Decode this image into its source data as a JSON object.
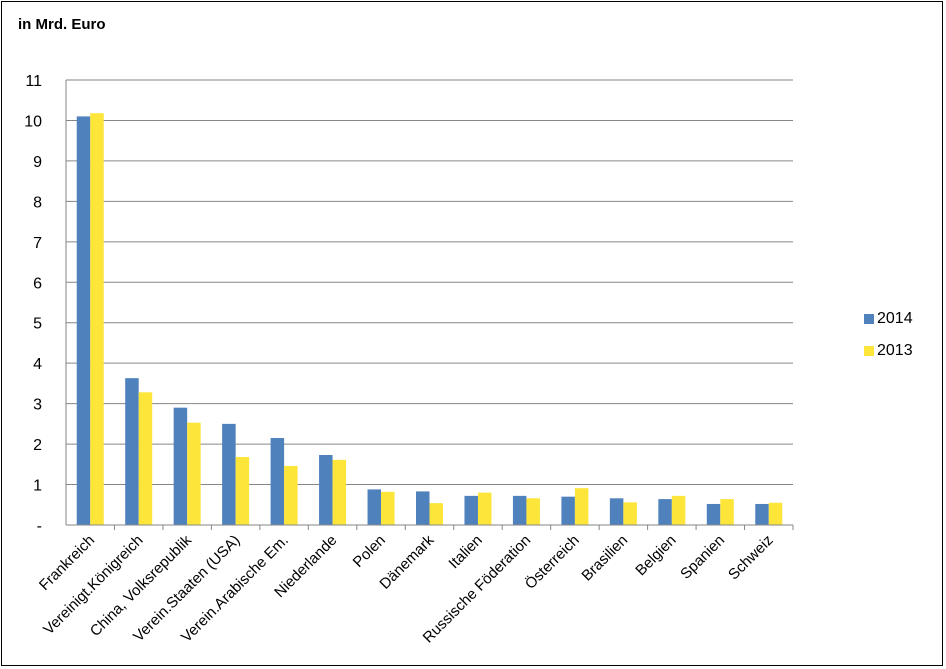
{
  "unit_label": "in Mrd. Euro",
  "colors": {
    "2014": "#4F81BD",
    "2013": "#FDE53A",
    "grid": "#868686"
  },
  "chart_data": {
    "type": "bar",
    "ylabel": "in Mrd. Euro",
    "ylim": [
      0,
      11
    ],
    "yticks": [
      "-",
      "1",
      "2",
      "3",
      "4",
      "5",
      "6",
      "7",
      "8",
      "9",
      "10",
      "11"
    ],
    "grid": true,
    "legend_position": "right",
    "categories": [
      "Frankreich",
      "Vereinigt.Königreich",
      "China, Volksrepublik",
      "Verein.Staaten (USA)",
      "Verein.Arabische Em.",
      "Niederlande",
      "Polen",
      "Dänemark",
      "Italien",
      "Russische Föderation",
      "Österreich",
      "Brasilien",
      "Belgien",
      "Spanien",
      "Schweiz"
    ],
    "series": [
      {
        "name": "2014",
        "values": [
          10.1,
          3.63,
          2.9,
          2.5,
          2.15,
          1.73,
          0.88,
          0.83,
          0.72,
          0.72,
          0.7,
          0.66,
          0.64,
          0.52,
          0.52
        ]
      },
      {
        "name": "2013",
        "values": [
          10.18,
          3.28,
          2.53,
          1.68,
          1.46,
          1.61,
          0.82,
          0.54,
          0.8,
          0.66,
          0.91,
          0.56,
          0.72,
          0.64,
          0.55
        ]
      }
    ]
  }
}
